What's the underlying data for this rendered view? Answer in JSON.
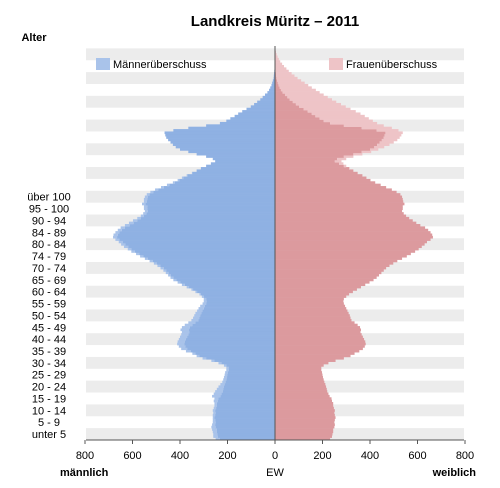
{
  "chart_data": {
    "type": "bar",
    "orientation": "horizontal-population-pyramid",
    "title": "Landkreis Müritz – 2011",
    "y_axis_title": "Alter",
    "x_axis_title": "EW",
    "left_label": "männlich",
    "right_label": "weiblich",
    "x_ticks_left": [
      "800",
      "600",
      "400",
      "200"
    ],
    "x_ticks_center": "0",
    "x_ticks_right": [
      "200",
      "400",
      "600",
      "800"
    ],
    "xlim": [
      -800,
      800
    ],
    "age_group_labels": [
      "unter 5",
      "5 - 9",
      "10 - 14",
      "15 - 19",
      "20 - 24",
      "25 - 29",
      "30 - 34",
      "35 - 39",
      "40 - 44",
      "45 - 49",
      "50 - 54",
      "55 - 59",
      "60 - 64",
      "65 - 69",
      "70 - 74",
      "74 - 79",
      "80 - 84",
      "84 - 89",
      "90 - 94",
      "95 - 100",
      "über 100"
    ],
    "legend": {
      "male_surplus": "Männerüberschuss",
      "female_surplus": "Frauenüberschuss"
    },
    "colors": {
      "male": "#a9c3ea",
      "male_common": "#8fb1e3",
      "female": "#eec4c7",
      "female_common": "#dc9a9e",
      "stripe": "#ececec",
      "axis": "#555555",
      "legend_male": "#a9c3ea",
      "legend_female": "#eec4c7"
    },
    "group_size": 5,
    "series": [
      {
        "name": "Männer",
        "values": [
          250,
          260,
          260,
          262,
          265,
          268,
          265,
          262,
          262,
          262,
          262,
          260,
          262,
          258,
          255,
          255,
          258,
          255,
          265,
          258,
          252,
          245,
          238,
          230,
          222,
          218,
          215,
          212,
          210,
          205,
          205,
          215,
          238,
          268,
          305,
          330,
          348,
          375,
          395,
          405,
          412,
          410,
          405,
          400,
          395,
          392,
          398,
          392,
          380,
          365,
          352,
          345,
          340,
          335,
          328,
          322,
          315,
          305,
          300,
          300,
          308,
          318,
          335,
          352,
          372,
          392,
          410,
          428,
          440,
          450,
          460,
          470,
          482,
          495,
          510,
          528,
          548,
          568,
          585,
          605,
          620,
          636,
          648,
          658,
          672,
          682,
          680,
          672,
          662,
          650,
          632,
          615,
          598,
          580,
          565,
          555,
          548,
          552,
          552,
          560,
          552,
          552,
          548,
          540,
          525,
          505,
          480,
          455,
          430,
          410,
          392,
          372,
          350,
          330,
          312,
          290,
          270,
          252,
          262,
          290,
          330,
          365,
          400,
          418,
          430,
          440,
          450,
          458,
          462,
          465,
          428,
          365,
          290,
          232,
          205,
          188,
          170,
          155,
          138,
          120,
          102,
          88,
          75,
          62,
          52,
          42,
          32,
          25,
          20,
          15,
          12,
          9,
          6,
          5,
          4,
          3,
          2,
          2,
          1,
          1,
          1,
          0,
          0,
          0,
          0,
          0
        ]
      },
      {
        "name": "Frauen",
        "values": [
          232,
          240,
          242,
          245,
          245,
          250,
          252,
          250,
          252,
          255,
          252,
          250,
          252,
          248,
          245,
          245,
          240,
          238,
          230,
          225,
          220,
          218,
          215,
          212,
          208,
          205,
          202,
          200,
          198,
          195,
          195,
          205,
          225,
          255,
          290,
          318,
          335,
          355,
          370,
          378,
          382,
          380,
          375,
          370,
          365,
          360,
          362,
          358,
          348,
          335,
          322,
          318,
          315,
          310,
          305,
          300,
          295,
          290,
          288,
          290,
          300,
          312,
          328,
          345,
          362,
          380,
          398,
          415,
          428,
          438,
          448,
          458,
          468,
          482,
          498,
          515,
          535,
          555,
          572,
          590,
          605,
          618,
          630,
          640,
          655,
          665,
          662,
          655,
          645,
          632,
          612,
          595,
          580,
          565,
          552,
          542,
          535,
          538,
          538,
          545,
          540,
          538,
          535,
          528,
          512,
          492,
          468,
          445,
          422,
          402,
          385,
          368,
          348,
          330,
          315,
          300,
          288,
          280,
          300,
          330,
          368,
          405,
          435,
          460,
          482,
          500,
          515,
          525,
          532,
          538,
          520,
          492,
          458,
          430,
          412,
          395,
          378,
          360,
          340,
          318,
          298,
          278,
          258,
          240,
          222,
          205,
          188,
          172,
          155,
          140,
          125,
          110,
          95,
          82,
          70,
          58,
          48,
          38,
          30,
          22,
          16,
          11,
          7,
          4,
          2,
          1
        ]
      },
      {
        "name": "Männerüberschuss",
        "values": [
          18,
          20,
          18,
          17,
          20,
          18,
          13,
          12,
          10,
          7,
          10,
          10,
          10,
          10,
          10,
          10,
          18,
          17,
          35,
          33,
          32,
          27,
          23,
          18,
          14,
          13,
          13,
          12,
          12,
          10,
          10,
          10,
          13,
          13,
          15,
          12,
          13,
          20,
          25,
          27,
          30,
          30,
          30,
          30,
          30,
          32,
          36,
          34,
          32,
          30,
          30,
          27,
          25,
          25,
          23,
          22,
          20,
          15,
          12,
          10,
          8,
          6,
          7,
          7,
          10,
          12,
          12,
          13,
          12,
          12,
          12,
          12,
          14,
          13,
          12,
          13,
          13,
          13,
          13,
          15,
          15,
          18,
          18,
          18,
          17,
          17,
          18,
          17,
          17,
          18,
          20,
          20,
          18,
          15,
          13,
          13,
          13,
          14,
          14,
          15,
          12,
          14,
          13,
          12,
          13,
          13,
          12,
          10,
          8,
          8,
          7,
          4,
          2,
          0,
          0,
          0,
          0,
          0,
          0,
          0,
          0,
          0,
          0,
          0,
          0,
          0,
          0,
          0,
          0,
          0,
          0,
          0,
          0,
          0,
          0,
          0,
          0,
          0,
          0,
          0,
          0,
          0,
          0,
          0,
          0,
          0,
          0,
          0,
          0,
          0,
          0,
          0,
          0,
          0,
          0,
          0,
          0,
          0,
          0,
          0,
          0,
          0,
          0,
          0,
          0,
          0
        ]
      },
      {
        "name": "Frauenüberschuss",
        "values": [
          0,
          0,
          0,
          0,
          0,
          0,
          0,
          0,
          0,
          0,
          0,
          0,
          0,
          0,
          0,
          0,
          0,
          0,
          0,
          0,
          0,
          0,
          0,
          0,
          0,
          0,
          0,
          0,
          0,
          0,
          0,
          0,
          0,
          0,
          0,
          0,
          0,
          0,
          0,
          0,
          0,
          0,
          0,
          0,
          0,
          0,
          0,
          0,
          0,
          0,
          0,
          0,
          0,
          0,
          0,
          0,
          0,
          0,
          0,
          0,
          0,
          0,
          0,
          0,
          0,
          0,
          0,
          0,
          0,
          0,
          0,
          0,
          0,
          0,
          0,
          0,
          0,
          0,
          0,
          0,
          0,
          0,
          0,
          0,
          0,
          0,
          0,
          0,
          0,
          0,
          0,
          0,
          0,
          0,
          0,
          0,
          0,
          0,
          0,
          0,
          0,
          0,
          0,
          0,
          0,
          0,
          0,
          0,
          0,
          0,
          0,
          0,
          0,
          0,
          3,
          10,
          18,
          28,
          38,
          40,
          38,
          40,
          35,
          42,
          52,
          60,
          65,
          67,
          70,
          73,
          92,
          127,
          168,
          198,
          207,
          207,
          208,
          205,
          202,
          198,
          196,
          190,
          183,
          178,
          170,
          163,
          156,
          147,
          135,
          125,
          113,
          101,
          89,
          77,
          66,
          55,
          46,
          36,
          29,
          21,
          15,
          11,
          7,
          4,
          2,
          1
        ]
      }
    ]
  }
}
